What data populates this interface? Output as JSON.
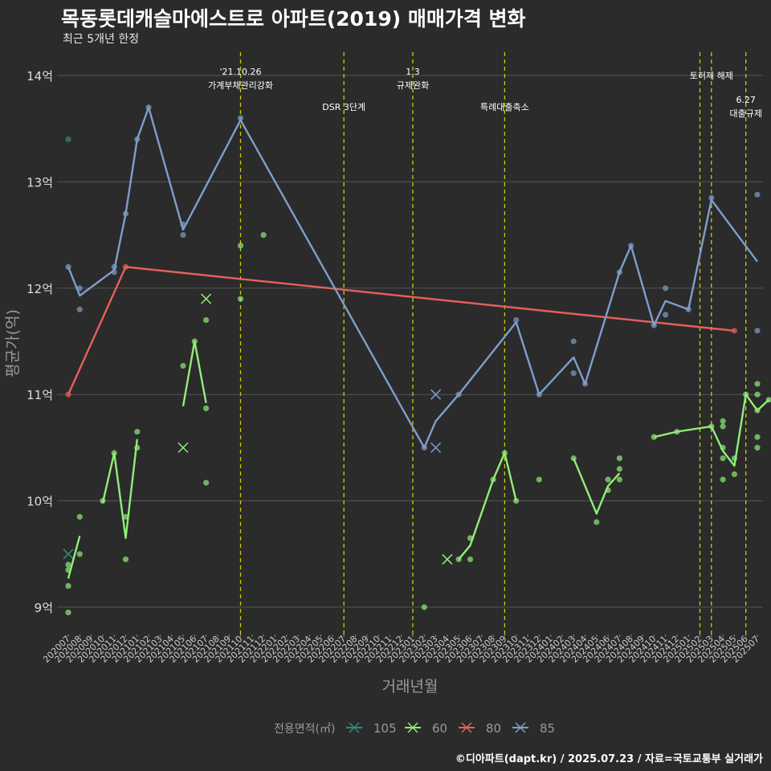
{
  "header": {
    "title": "목동롯데캐슬마에스트로 아파트(2019) 매매가격 변화",
    "subtitle": "최근 5개년 한정"
  },
  "caption": "©디아파트(dapt.kr) / 2025.07.23 / 자료=국토교통부 실거래가",
  "colors": {
    "background": "#2b2b2b",
    "grid": "#555555",
    "vline": "#cccc00",
    "s105": "#2e8b7f",
    "s60": "#90ee79",
    "s80": "#e8605a",
    "s85": "#7f9ecb"
  },
  "chart_data": {
    "type": "line",
    "xlabel": "거래년월",
    "ylabel": "평균가(억)",
    "categories": [
      "202007",
      "202008",
      "202009",
      "202010",
      "202011",
      "202012",
      "202101",
      "202102",
      "202103",
      "202104",
      "202105",
      "202106",
      "202107",
      "202108",
      "202109",
      "202110",
      "202111",
      "202112",
      "202201",
      "202202",
      "202203",
      "202204",
      "202205",
      "202206",
      "202207",
      "202208",
      "202209",
      "202210",
      "202211",
      "202212",
      "202301",
      "202302",
      "202303",
      "202304",
      "202305",
      "202306",
      "202307",
      "202308",
      "202309",
      "202310",
      "202311",
      "202312",
      "202401",
      "202402",
      "202403",
      "202404",
      "202405",
      "202406",
      "202407",
      "202408",
      "202409",
      "202410",
      "202411",
      "202412",
      "202501",
      "202502",
      "202503",
      "202504",
      "202505",
      "202506",
      "202507"
    ],
    "y_ticks": [
      {
        "value": 9,
        "label": "9억"
      },
      {
        "value": 10,
        "label": "10억"
      },
      {
        "value": 11,
        "label": "11억"
      },
      {
        "value": 12,
        "label": "12억"
      },
      {
        "value": 13,
        "label": "13억"
      },
      {
        "value": 14,
        "label": "14억"
      }
    ],
    "ylim": [
      8.75,
      14.25
    ],
    "series": [
      {
        "name": "105",
        "color_key": "s105",
        "line": [],
        "points": [
          [
            0,
            13.4
          ]
        ],
        "x_marks": [
          [
            0,
            9.5
          ]
        ]
      },
      {
        "name": "60",
        "color_key": "s60",
        "segments": [
          [
            [
              0,
              9.27
            ],
            [
              1,
              9.67
            ]
          ],
          [
            [
              3,
              9.98
            ],
            [
              4,
              10.45
            ],
            [
              5,
              9.65
            ],
            [
              6,
              10.58
            ]
          ],
          [
            [
              10,
              10.89
            ],
            [
              11,
              11.5
            ],
            [
              12,
              10.92
            ]
          ],
          [
            [
              34,
              9.45
            ],
            [
              35,
              9.58
            ],
            [
              37,
              10.2
            ],
            [
              38,
              10.45
            ],
            [
              39,
              10.0
            ]
          ],
          [
            [
              44,
              10.4
            ],
            [
              46,
              9.88
            ],
            [
              47,
              10.14
            ],
            [
              48,
              10.26
            ]
          ],
          [
            [
              51,
              10.6
            ],
            [
              53,
              10.65
            ],
            [
              56,
              10.7
            ],
            [
              57,
              10.47
            ],
            [
              58,
              10.33
            ],
            [
              59,
              11.0
            ],
            [
              60,
              10.85
            ],
            [
              61,
              10.95
            ]
          ]
        ],
        "points": [
          [
            0,
            8.95
          ],
          [
            0,
            9.2
          ],
          [
            0,
            9.35
          ],
          [
            0,
            9.4
          ],
          [
            1,
            9.5
          ],
          [
            1,
            9.85
          ],
          [
            3,
            10.0
          ],
          [
            4,
            10.45
          ],
          [
            5,
            9.45
          ],
          [
            5,
            9.85
          ],
          [
            6,
            10.5
          ],
          [
            6,
            10.65
          ],
          [
            10,
            11.27
          ],
          [
            11,
            11.5
          ],
          [
            12,
            11.7
          ],
          [
            12,
            10.87
          ],
          [
            12,
            10.17
          ],
          [
            15,
            12.4
          ],
          [
            15,
            11.9
          ],
          [
            17,
            12.5
          ],
          [
            31,
            9.0
          ],
          [
            34,
            9.45
          ],
          [
            35,
            9.45
          ],
          [
            35,
            9.65
          ],
          [
            37,
            10.2
          ],
          [
            38,
            10.45
          ],
          [
            39,
            10.0
          ],
          [
            41,
            10.2
          ],
          [
            44,
            10.4
          ],
          [
            46,
            9.8
          ],
          [
            47,
            10.2
          ],
          [
            47,
            10.1
          ],
          [
            48,
            10.4
          ],
          [
            48,
            10.3
          ],
          [
            48,
            10.2
          ],
          [
            51,
            10.6
          ],
          [
            53,
            10.65
          ],
          [
            56,
            10.7
          ],
          [
            57,
            10.75
          ],
          [
            57,
            10.7
          ],
          [
            57,
            10.5
          ],
          [
            57,
            10.4
          ],
          [
            57,
            10.2
          ],
          [
            58,
            10.4
          ],
          [
            58,
            10.25
          ],
          [
            59,
            11.0
          ],
          [
            60,
            11.1
          ],
          [
            60,
            11.0
          ],
          [
            60,
            10.85
          ],
          [
            60,
            10.6
          ],
          [
            60,
            10.5
          ],
          [
            61,
            10.95
          ]
        ],
        "x_marks": [
          [
            10,
            10.5
          ],
          [
            12,
            11.9
          ],
          [
            33,
            9.45
          ]
        ]
      },
      {
        "name": "80",
        "color_key": "s80",
        "segments": [
          [
            [
              0,
              11.0
            ],
            [
              5,
              12.2
            ],
            [
              58,
              11.6
            ]
          ]
        ],
        "points": [
          [
            0,
            11.0
          ],
          [
            5,
            12.2
          ],
          [
            58,
            11.6
          ]
        ],
        "x_marks": []
      },
      {
        "name": "85",
        "color_key": "s85",
        "segments": [
          [
            [
              0,
              12.2
            ],
            [
              1,
              11.93
            ],
            [
              4,
              12.17
            ],
            [
              5,
              12.7
            ],
            [
              6,
              13.4
            ],
            [
              7,
              13.7
            ],
            [
              10,
              12.55
            ],
            [
              15,
              13.58
            ],
            [
              31,
              10.5
            ],
            [
              32,
              10.75
            ],
            [
              34,
              11.0
            ],
            [
              39,
              11.68
            ],
            [
              41,
              11.0
            ],
            [
              44,
              11.35
            ],
            [
              45,
              11.1
            ],
            [
              48,
              12.15
            ],
            [
              49,
              12.4
            ],
            [
              51,
              11.65
            ],
            [
              52,
              11.88
            ],
            [
              54,
              11.8
            ],
            [
              56,
              12.83
            ],
            [
              60,
              12.25
            ]
          ]
        ],
        "points": [
          [
            0,
            12.2
          ],
          [
            1,
            12.0
          ],
          [
            1,
            11.8
          ],
          [
            4,
            12.2
          ],
          [
            4,
            12.15
          ],
          [
            5,
            12.7
          ],
          [
            6,
            13.4
          ],
          [
            7,
            13.7
          ],
          [
            10,
            12.6
          ],
          [
            10,
            12.5
          ],
          [
            15,
            13.6
          ],
          [
            31,
            10.5
          ],
          [
            34,
            11.0
          ],
          [
            39,
            11.7
          ],
          [
            41,
            11.0
          ],
          [
            44,
            11.5
          ],
          [
            44,
            11.2
          ],
          [
            45,
            11.1
          ],
          [
            48,
            12.15
          ],
          [
            49,
            12.4
          ],
          [
            51,
            11.65
          ],
          [
            52,
            12.0
          ],
          [
            52,
            11.75
          ],
          [
            54,
            11.8
          ],
          [
            56,
            12.85
          ],
          [
            60,
            12.88
          ],
          [
            60,
            11.6
          ]
        ],
        "x_marks": [
          [
            32,
            11.0
          ],
          [
            32,
            10.5
          ]
        ]
      }
    ],
    "vlines": [
      {
        "x": 15,
        "lines": [
          "'21.10.26",
          "가계부채관리강화"
        ],
        "row": 0
      },
      {
        "x": 24,
        "lines": [
          "DSR 3단계"
        ],
        "row": 2
      },
      {
        "x": 30,
        "lines": [
          "1.3",
          "규제완화"
        ],
        "row": 0
      },
      {
        "x": 38,
        "lines": [
          "특례대출축소"
        ],
        "row": 2
      },
      {
        "x": 55,
        "lines": [],
        "row": 0
      },
      {
        "x": 56,
        "lines": [
          "토허제 해제"
        ],
        "row": 1
      },
      {
        "x": 59,
        "lines": [
          "6.27",
          "대출규제"
        ],
        "row": 3
      }
    ],
    "legend": {
      "title": "전용면적(㎡)",
      "position": "bottom",
      "items": [
        {
          "label": "105",
          "color_key": "s105"
        },
        {
          "label": "60",
          "color_key": "s60"
        },
        {
          "label": "80",
          "color_key": "s80"
        },
        {
          "label": "85",
          "color_key": "s85"
        }
      ]
    }
  }
}
